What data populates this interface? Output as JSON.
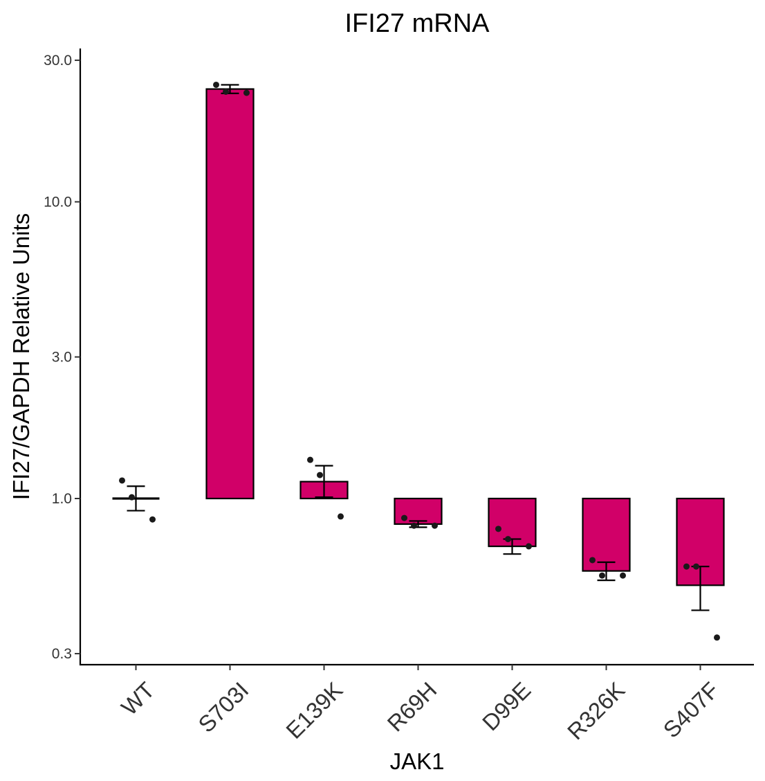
{
  "chart_data": {
    "type": "bar",
    "title": "IFI27 mRNA",
    "xlabel": "JAK1",
    "ylabel": "IFI27/GAPDH Relative Units",
    "yscale": "log10",
    "ylim": [
      0.28,
      32
    ],
    "baseline": 1.0,
    "yticks": [
      0.3,
      1.0,
      3.0,
      10.0,
      30.0
    ],
    "ytick_labels": [
      "0.3",
      "1.0",
      "3.0",
      "10.0",
      "30.0"
    ],
    "bar_color": "#d10068",
    "categories": [
      "WT",
      "S703I",
      "E139K",
      "R69H",
      "D99E",
      "R326K",
      "S407F"
    ],
    "values": [
      1.0,
      24.0,
      1.14,
      0.82,
      0.69,
      0.57,
      0.51
    ],
    "error_low": [
      0.91,
      23.2,
      1.01,
      0.8,
      0.65,
      0.53,
      0.42
    ],
    "error_high": [
      1.1,
      24.8,
      1.29,
      0.84,
      0.73,
      0.61,
      0.59
    ],
    "points": [
      [
        1.15,
        1.01,
        0.85
      ],
      [
        24.8,
        23.5,
        23.3
      ],
      [
        1.35,
        1.2,
        0.87
      ],
      [
        0.86,
        0.81,
        0.81
      ],
      [
        0.79,
        0.73,
        0.69
      ],
      [
        0.62,
        0.55,
        0.55
      ],
      [
        0.59,
        0.59,
        0.34
      ]
    ],
    "grid": false,
    "legend": "none"
  }
}
